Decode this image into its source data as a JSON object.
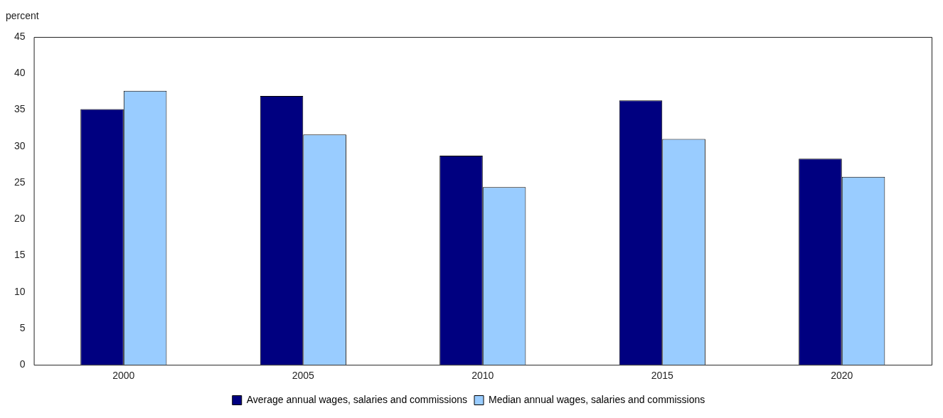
{
  "chart_data": {
    "type": "bar",
    "ylabel": "percent",
    "categories": [
      "2000",
      "2005",
      "2010",
      "2015",
      "2020"
    ],
    "series": [
      {
        "name": "Average annual wages, salaries and commissions",
        "color": "#000080",
        "values": [
          35.1,
          36.9,
          28.7,
          36.3,
          28.3
        ]
      },
      {
        "name": "Median annual wages, salaries and commissions",
        "color": "#99ccff",
        "values": [
          37.6,
          31.6,
          24.4,
          31.0,
          25.8
        ]
      }
    ],
    "ylim": [
      0,
      45
    ],
    "yticks": [
      0,
      5,
      10,
      15,
      20,
      25,
      30,
      35,
      40,
      45
    ],
    "grid": false,
    "legend": "bottom"
  }
}
